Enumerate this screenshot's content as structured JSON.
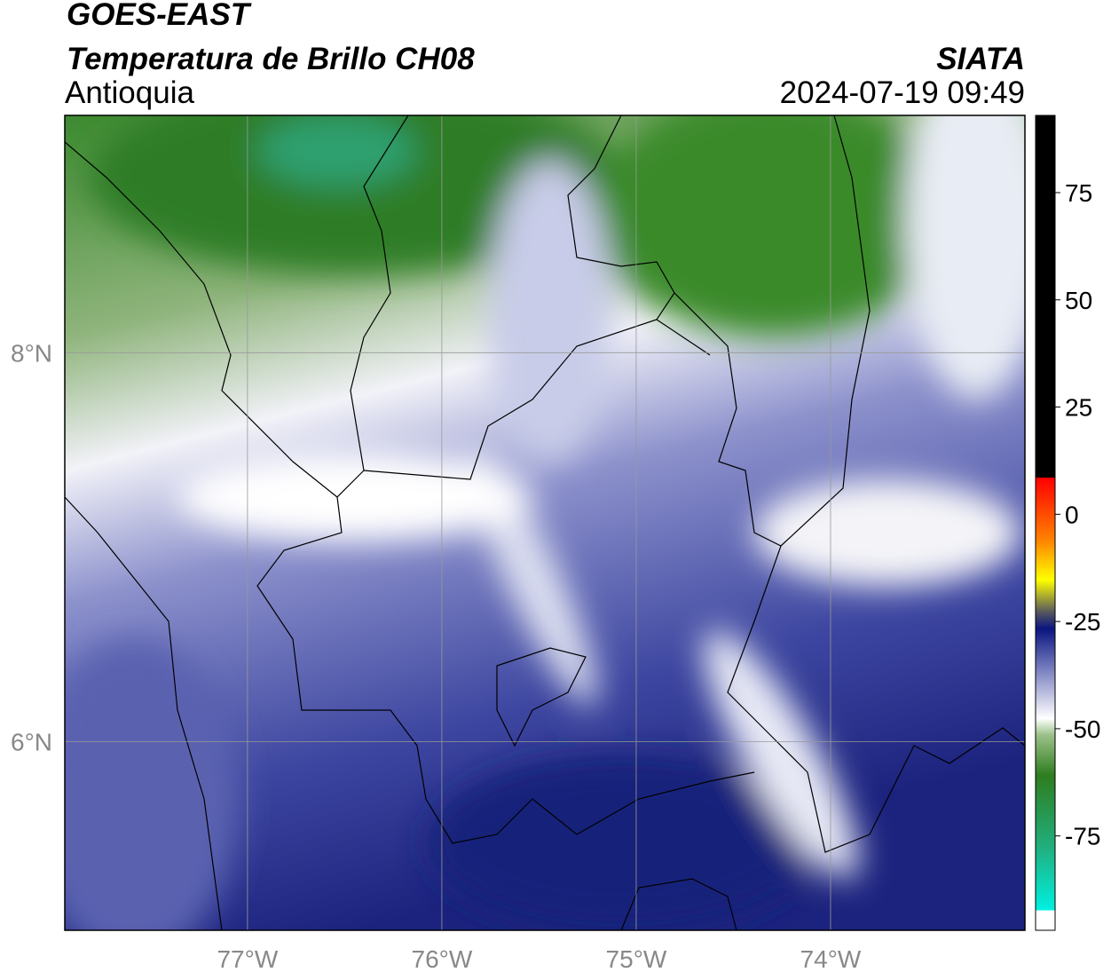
{
  "header": {
    "title": "GOES-EAST",
    "subtitle": "Temperatura de Brillo CH08",
    "region": "Antioquia",
    "source": "SIATA",
    "datetime": "2024-07-19 09:49"
  },
  "map": {
    "lonlim": [
      -77.94,
      -73.0
    ],
    "latlim": [
      5.03,
      9.22
    ],
    "lonticks": [
      {
        "value": -77,
        "label": "77°W"
      },
      {
        "value": -76,
        "label": "76°W"
      },
      {
        "value": -75,
        "label": "75°W"
      },
      {
        "value": -74,
        "label": "74°W"
      }
    ],
    "latticks": [
      {
        "value": 8,
        "label": "8°N"
      },
      {
        "value": 6,
        "label": "6°N"
      }
    ],
    "grid": true
  },
  "colorbar": {
    "lim": [
      -97,
      93
    ],
    "ticks": [
      75,
      50,
      25,
      0,
      -25,
      -50,
      -75
    ]
  }
}
